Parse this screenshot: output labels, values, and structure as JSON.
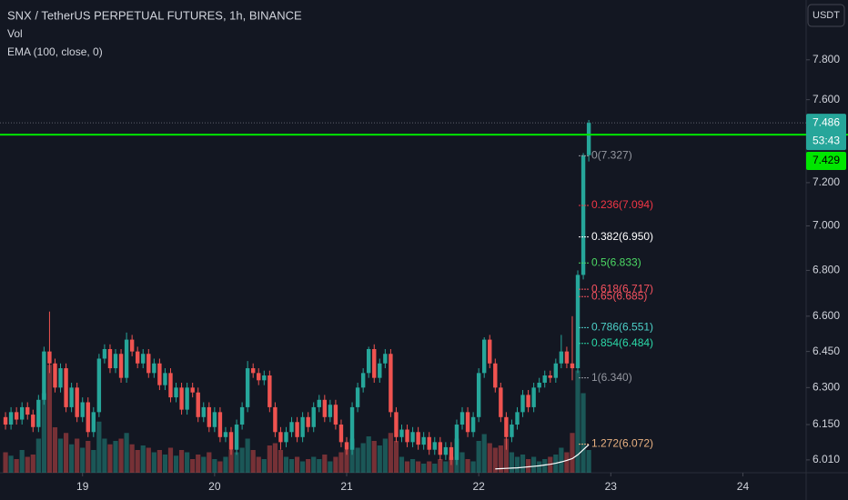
{
  "chart_data": {
    "type": "candlestick",
    "title": "SNX / TetherUS PERPETUAL FUTURES, 1h, BINANCE",
    "indicators": [
      "Vol",
      "EMA (100, close, 0)"
    ],
    "currency": "USDT",
    "log": true,
    "xlim": [
      -15,
      131.5
    ],
    "ylim": [
      5.96,
      8.11
    ],
    "vlim": [
      0,
      100
    ],
    "xticks": [
      {
        "value": 0,
        "label": "19"
      },
      {
        "value": 24,
        "label": "20"
      },
      {
        "value": 48,
        "label": "21"
      },
      {
        "value": 72,
        "label": "22"
      },
      {
        "value": 96,
        "label": "23"
      },
      {
        "value": 120,
        "label": "24"
      }
    ],
    "yticks": [
      {
        "value": 7.8,
        "label": "7.800"
      },
      {
        "value": 7.6,
        "label": "7.600"
      },
      {
        "value": 7.2,
        "label": "7.200"
      },
      {
        "value": 7,
        "label": "7.000"
      },
      {
        "value": 6.8,
        "label": "6.800"
      },
      {
        "value": 6.6,
        "label": "6.600"
      },
      {
        "value": 6.45,
        "label": "6.450"
      },
      {
        "value": 6.3,
        "label": "6.300"
      },
      {
        "value": 6.15,
        "label": "6.150"
      },
      {
        "value": 6.01,
        "label": "6.010"
      }
    ],
    "up_color": "#26a69a",
    "down_color": "#ef5350",
    "candles": [
      [
        -14,
        6.18,
        6.2,
        6.13,
        6.15
      ],
      [
        -13,
        6.15,
        6.22,
        6.13,
        6.2
      ],
      [
        -12,
        6.2,
        6.22,
        6.15,
        6.17
      ],
      [
        -11,
        6.17,
        6.24,
        6.15,
        6.22
      ],
      [
        -10,
        6.22,
        6.24,
        6.17,
        6.19
      ],
      [
        -9,
        6.19,
        6.21,
        6.12,
        6.14
      ],
      [
        -8,
        6.14,
        6.27,
        6.12,
        6.25
      ],
      [
        -7,
        6.25,
        6.47,
        6.23,
        6.45
      ],
      [
        -6,
        6.45,
        6.62,
        6.36,
        6.4
      ],
      [
        -5,
        6.4,
        6.42,
        6.28,
        6.3
      ],
      [
        -4,
        6.3,
        6.4,
        6.28,
        6.38
      ],
      [
        -3,
        6.38,
        6.4,
        6.2,
        6.22
      ],
      [
        -2,
        6.22,
        6.32,
        6.2,
        6.3
      ],
      [
        -1,
        6.3,
        6.32,
        6.16,
        6.18
      ],
      [
        0,
        6.18,
        6.26,
        6.16,
        6.24
      ],
      [
        1,
        6.24,
        6.26,
        6.1,
        6.12
      ],
      [
        2,
        6.12,
        6.22,
        6.1,
        6.2
      ],
      [
        3,
        6.2,
        6.44,
        6.18,
        6.42
      ],
      [
        4,
        6.42,
        6.48,
        6.4,
        6.46
      ],
      [
        5,
        6.46,
        6.48,
        6.36,
        6.38
      ],
      [
        6,
        6.38,
        6.46,
        6.36,
        6.44
      ],
      [
        7,
        6.44,
        6.46,
        6.32,
        6.34
      ],
      [
        8,
        6.34,
        6.53,
        6.32,
        6.5
      ],
      [
        9,
        6.5,
        6.52,
        6.43,
        6.45
      ],
      [
        10,
        6.45,
        6.47,
        6.38,
        6.4
      ],
      [
        11,
        6.4,
        6.46,
        6.38,
        6.44
      ],
      [
        12,
        6.44,
        6.46,
        6.34,
        6.36
      ],
      [
        13,
        6.36,
        6.42,
        6.34,
        6.4
      ],
      [
        14,
        6.4,
        6.42,
        6.29,
        6.31
      ],
      [
        15,
        6.31,
        6.38,
        6.29,
        6.36
      ],
      [
        16,
        6.36,
        6.38,
        6.24,
        6.26
      ],
      [
        17,
        6.26,
        6.32,
        6.24,
        6.3
      ],
      [
        18,
        6.3,
        6.32,
        6.19,
        6.21
      ],
      [
        19,
        6.21,
        6.32,
        6.19,
        6.3
      ],
      [
        20,
        6.3,
        6.32,
        6.26,
        6.28
      ],
      [
        21,
        6.28,
        6.3,
        6.16,
        6.18
      ],
      [
        22,
        6.18,
        6.24,
        6.16,
        6.22
      ],
      [
        23,
        6.22,
        6.24,
        6.12,
        6.14
      ],
      [
        24,
        6.14,
        6.22,
        6.12,
        6.2
      ],
      [
        25,
        6.2,
        6.22,
        6.08,
        6.1
      ],
      [
        26,
        6.1,
        6.14,
        6.08,
        6.12
      ],
      [
        27,
        6.12,
        6.14,
        6.03,
        6.05
      ],
      [
        28,
        6.05,
        6.17,
        6.03,
        6.15
      ],
      [
        29,
        6.15,
        6.24,
        6.13,
        6.22
      ],
      [
        30,
        6.22,
        6.41,
        6.2,
        6.38
      ],
      [
        31,
        6.38,
        6.4,
        6.34,
        6.36
      ],
      [
        32,
        6.36,
        6.38,
        6.31,
        6.33
      ],
      [
        33,
        6.33,
        6.37,
        6.31,
        6.35
      ],
      [
        34,
        6.35,
        6.37,
        6.2,
        6.22
      ],
      [
        35,
        6.22,
        6.24,
        6.1,
        6.12
      ],
      [
        36,
        6.12,
        6.14,
        6.05,
        6.08
      ],
      [
        37,
        6.08,
        6.14,
        6.06,
        6.12
      ],
      [
        38,
        6.12,
        6.18,
        6.1,
        6.16
      ],
      [
        39,
        6.16,
        6.18,
        6.08,
        6.1
      ],
      [
        40,
        6.1,
        6.2,
        6.08,
        6.18
      ],
      [
        41,
        6.18,
        6.2,
        6.12,
        6.14
      ],
      [
        42,
        6.14,
        6.24,
        6.12,
        6.22
      ],
      [
        43,
        6.22,
        6.27,
        6.2,
        6.25
      ],
      [
        44,
        6.25,
        6.27,
        6.16,
        6.18
      ],
      [
        45,
        6.18,
        6.25,
        6.16,
        6.23
      ],
      [
        46,
        6.23,
        6.25,
        6.13,
        6.15
      ],
      [
        47,
        6.15,
        6.17,
        6.06,
        6.08
      ],
      [
        48,
        6.08,
        6.1,
        6.03,
        6.05
      ],
      [
        49,
        6.05,
        6.24,
        6.03,
        6.22
      ],
      [
        50,
        6.22,
        6.32,
        6.2,
        6.3
      ],
      [
        51,
        6.3,
        6.38,
        6.28,
        6.36
      ],
      [
        52,
        6.36,
        6.47,
        6.34,
        6.46
      ],
      [
        53,
        6.46,
        6.48,
        6.32,
        6.34
      ],
      [
        54,
        6.34,
        6.42,
        6.32,
        6.4
      ],
      [
        55,
        6.4,
        6.46,
        6.38,
        6.44
      ],
      [
        56,
        6.44,
        6.46,
        6.18,
        6.2
      ],
      [
        57,
        6.2,
        6.22,
        6.08,
        6.1
      ],
      [
        58,
        6.1,
        6.15,
        6.08,
        6.13
      ],
      [
        59,
        6.13,
        6.15,
        6.06,
        6.08
      ],
      [
        60,
        6.08,
        6.14,
        6.06,
        6.12
      ],
      [
        61,
        6.12,
        6.14,
        6.05,
        6.07
      ],
      [
        62,
        6.07,
        6.12,
        6.05,
        6.1
      ],
      [
        63,
        6.1,
        6.12,
        6.03,
        6.05
      ],
      [
        64,
        6.05,
        6.1,
        6.03,
        6.08
      ],
      [
        65,
        6.08,
        6.1,
        6.01,
        6.03
      ],
      [
        66,
        6.03,
        6.08,
        6.01,
        6.06
      ],
      [
        67,
        6.06,
        6.08,
        5.99,
        6.01
      ],
      [
        68,
        6.01,
        6.17,
        5.99,
        6.15
      ],
      [
        69,
        6.15,
        6.22,
        6.13,
        6.2
      ],
      [
        70,
        6.2,
        6.22,
        6.1,
        6.12
      ],
      [
        71,
        6.12,
        6.2,
        6.1,
        6.18
      ],
      [
        72,
        6.18,
        6.38,
        6.16,
        6.36
      ],
      [
        73,
        6.36,
        6.51,
        6.34,
        6.5
      ],
      [
        74,
        6.5,
        6.52,
        6.38,
        6.4
      ],
      [
        75,
        6.4,
        6.42,
        6.28,
        6.3
      ],
      [
        76,
        6.3,
        6.32,
        6.16,
        6.18
      ],
      [
        77,
        6.18,
        6.2,
        6.05,
        6.1
      ],
      [
        78,
        6.1,
        6.17,
        6.08,
        6.15
      ],
      [
        79,
        6.15,
        6.22,
        6.13,
        6.2
      ],
      [
        80,
        6.2,
        6.29,
        6.18,
        6.27
      ],
      [
        81,
        6.27,
        6.29,
        6.2,
        6.22
      ],
      [
        82,
        6.22,
        6.32,
        6.2,
        6.3
      ],
      [
        83,
        6.3,
        6.34,
        6.28,
        6.32
      ],
      [
        84,
        6.32,
        6.37,
        6.3,
        6.35
      ],
      [
        85,
        6.35,
        6.37,
        6.32,
        6.34
      ],
      [
        86,
        6.34,
        6.42,
        6.32,
        6.4
      ],
      [
        87,
        6.4,
        6.52,
        6.38,
        6.45
      ],
      [
        88,
        6.45,
        6.47,
        6.38,
        6.4
      ],
      [
        89,
        6.4,
        6.6,
        6.33,
        6.38
      ],
      [
        90,
        6.38,
        6.8,
        6.36,
        6.78
      ],
      [
        91,
        6.78,
        7.34,
        6.76,
        7.33
      ],
      [
        92,
        7.33,
        7.5,
        7.3,
        7.486
      ]
    ],
    "volume": [
      18,
      15,
      12,
      20,
      14,
      16,
      30,
      70,
      95,
      40,
      30,
      35,
      25,
      30,
      22,
      28,
      20,
      45,
      30,
      25,
      28,
      30,
      35,
      25,
      20,
      24,
      22,
      18,
      20,
      16,
      22,
      15,
      20,
      18,
      12,
      16,
      14,
      18,
      12,
      10,
      14,
      20,
      18,
      22,
      30,
      20,
      14,
      12,
      24,
      26,
      20,
      14,
      12,
      14,
      10,
      12,
      14,
      12,
      16,
      10,
      14,
      18,
      20,
      30,
      22,
      26,
      32,
      28,
      24,
      30,
      35,
      28,
      14,
      10,
      12,
      10,
      8,
      10,
      8,
      12,
      10,
      14,
      30,
      18,
      12,
      10,
      28,
      34,
      26,
      22,
      24,
      30,
      18,
      14,
      16,
      12,
      14,
      10,
      12,
      14,
      16,
      22,
      18,
      35,
      90,
      70,
      20
    ],
    "ema": {
      "color": "#ffffff",
      "x": [
        75,
        76,
        77,
        78,
        79,
        80,
        81,
        82,
        83,
        84,
        85,
        86,
        87,
        88,
        89,
        90,
        91,
        92
      ],
      "values": [
        5.975,
        5.976,
        5.977,
        5.978,
        5.979,
        5.981,
        5.983,
        5.985,
        5.987,
        5.99,
        5.993,
        5.997,
        6.002,
        6.008,
        6.015,
        6.03,
        6.05,
        6.07
      ]
    },
    "fib": [
      {
        "label": "0(7.327)",
        "value": 7.327,
        "color": "#9598a1"
      },
      {
        "label": "0.236(7.094)",
        "value": 7.094,
        "color": "#f23645"
      },
      {
        "label": "0.382(6.950)",
        "value": 6.95,
        "color": "#ffffff"
      },
      {
        "label": "0.5(6.833)",
        "value": 6.833,
        "color": "#4cd964"
      },
      {
        "label": "0.618(6.717)",
        "value": 6.717,
        "color": "#f7525f"
      },
      {
        "label": "0.65(6.685)",
        "value": 6.685,
        "color": "#f7525f"
      },
      {
        "label": "0.786(6.551)",
        "value": 6.551,
        "color": "#4dd0c8"
      },
      {
        "label": "0.854(6.484)",
        "value": 6.484,
        "color": "#2bd9a8"
      },
      {
        "label": "1(6.340)",
        "value": 6.34,
        "color": "#9598a1"
      },
      {
        "label": "1.272(6.072)",
        "value": 6.072,
        "color": "#e8b080"
      }
    ],
    "last_price": 7.486,
    "countdown": "53:43",
    "hline": {
      "value": 7.429,
      "color": "#00e600"
    }
  }
}
